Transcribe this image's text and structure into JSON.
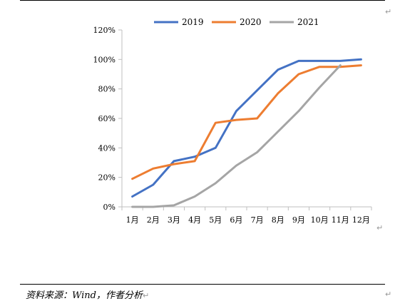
{
  "chart_data": {
    "type": "line",
    "title": "",
    "xlabel": "",
    "ylabel": "",
    "categories": [
      "1月",
      "2月",
      "3月",
      "4月",
      "5月",
      "6月",
      "7月",
      "8月",
      "9月",
      "10月",
      "11月",
      "12月"
    ],
    "ylim": [
      0,
      1.2
    ],
    "yticks": [
      "0%",
      "20%",
      "40%",
      "60%",
      "80%",
      "100%",
      "120%"
    ],
    "grid": false,
    "legend": "top",
    "series": [
      {
        "name": "2019",
        "color": "#4472C4",
        "values": [
          0.07,
          0.15,
          0.31,
          0.34,
          0.4,
          0.65,
          0.79,
          0.93,
          0.99,
          0.99,
          0.99,
          1.0
        ]
      },
      {
        "name": "2020",
        "color": "#ED7D31",
        "values": [
          0.19,
          0.26,
          0.29,
          0.31,
          0.57,
          0.59,
          0.6,
          0.77,
          0.9,
          0.95,
          0.95,
          0.96
        ]
      },
      {
        "name": "2021",
        "color": "#A5A5A5",
        "values": [
          0.0,
          0.0,
          0.01,
          0.07,
          0.16,
          0.28,
          0.37,
          0.51,
          0.65,
          0.81,
          0.96,
          null
        ]
      }
    ]
  },
  "footer": {
    "source": "资料来源：Wind，作者分析",
    "return_mark": "↵"
  }
}
